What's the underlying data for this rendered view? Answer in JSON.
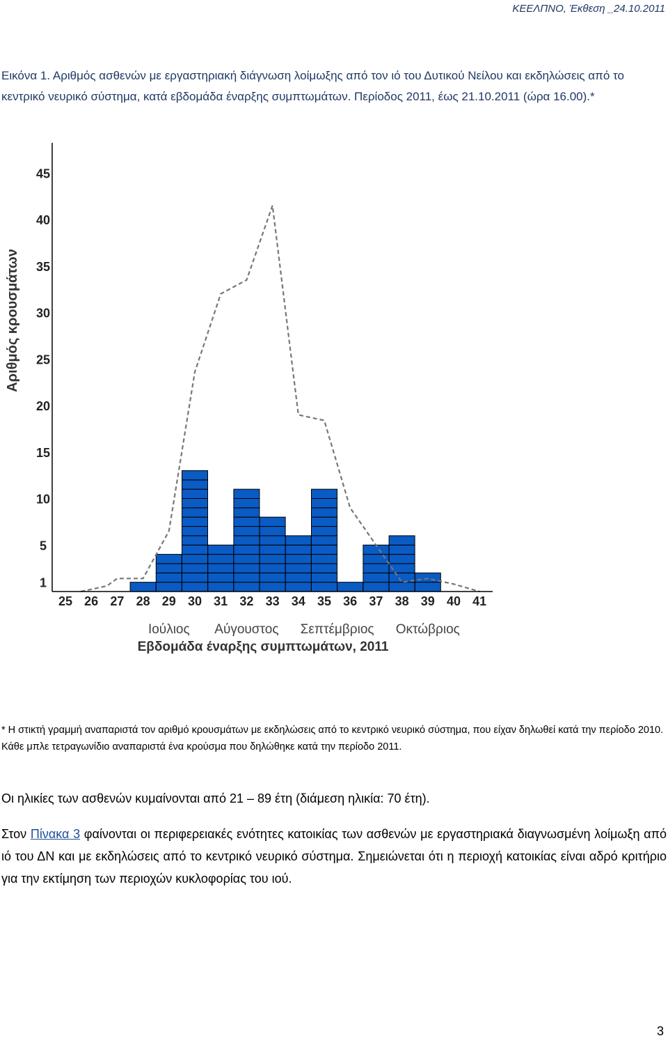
{
  "header": {
    "text": "ΚΕΕΛΠΝΟ, Έκθεση _24.10.2011"
  },
  "caption": "Εικόνα 1. Αριθμός ασθενών με εργαστηριακή διάγνωση λοίμωξης από τον ιό του Δυτικού Νείλου και εκδηλώσεις από το κεντρικό νευρικό σύστημα, κατά εβδομάδα έναρξης συμπτωμάτων. Περίοδος 2011, έως 21.10.2011 (ώρα 16.00).*",
  "chart_data": {
    "type": "bar",
    "ylabel": "Αριθμός κρουσμάτων",
    "xlabel": "Εβδομάδα έναρξης συμπτωμάτων, 2011",
    "categories": [
      "25",
      "26",
      "27",
      "28",
      "29",
      "30",
      "31",
      "32",
      "33",
      "34",
      "35",
      "36",
      "37",
      "38",
      "39",
      "40",
      "41"
    ],
    "y_tick_labels": [
      "1",
      "5",
      "10",
      "15",
      "20",
      "25",
      "30",
      "35",
      "40",
      "45"
    ],
    "y_ticks": [
      1,
      5,
      10,
      15,
      20,
      25,
      30,
      35,
      40,
      45
    ],
    "ylim": [
      0,
      47
    ],
    "month_labels": [
      {
        "label": "Ιούλιος",
        "center_week": 29
      },
      {
        "label": "Αύγουστος",
        "center_week": 32
      },
      {
        "label": "Σεπτέμβριος",
        "center_week": 35.5
      },
      {
        "label": "Οκτώβριος",
        "center_week": 39
      }
    ],
    "bar_color": "#0a5bc4",
    "series": [
      {
        "type": "bar",
        "values": [
          0,
          0,
          0,
          1,
          4,
          13,
          5,
          11,
          8,
          6,
          11,
          1,
          5,
          6,
          2,
          0,
          0
        ]
      },
      {
        "type": "line",
        "style": "dashed",
        "color": "#777777",
        "x": [
          25.6,
          26.6,
          27.0,
          28.0,
          29.0,
          30.0,
          31.0,
          32.0,
          33.0,
          34.0,
          35.0,
          36.0,
          37.0,
          38.0,
          39.0,
          40.0,
          41.0
        ],
        "values": [
          0,
          0.6,
          1.4,
          1.4,
          6.5,
          23.6,
          32.0,
          33.5,
          41.5,
          19.0,
          18.4,
          9.0,
          5.0,
          1.0,
          1.4,
          0.8,
          0
        ]
      }
    ]
  },
  "footnote": {
    "line1": "* Η στικτή γραμμή αναπαριστά τον αριθμό κρουσμάτων με εκδηλώσεις από το κεντρικό νευρικό σύστημα, που είχαν δηλωθεί κατά την περίοδο 2010.",
    "line2": "Κάθε μπλε τετραγωνίδιο αναπαριστά ένα κρούσμα που δηλώθηκε κατά την περίοδο 2011."
  },
  "paragraph_ages": "Οι ηλικίες των ασθενών κυμαίνονται από 21 – 89 έτη (διάμεση ηλικία: 70 έτη).",
  "paragraph_regions": {
    "before_link": "Στον ",
    "link": "Πίνακα 3",
    "after_link": " φαίνονται οι περιφερειακές ενότητες κατοικίας των ασθενών με εργαστηριακά διαγνωσμένη λοίμωξη από ιό του ΔΝ και με εκδηλώσεις από το κεντρικό νευρικό σύστημα. Σημειώνεται ότι η περιοχή κατοικίας είναι αδρό κριτήριο για την εκτίμηση των περιοχών κυκλοφορίας του ιού."
  },
  "page_number": "3"
}
